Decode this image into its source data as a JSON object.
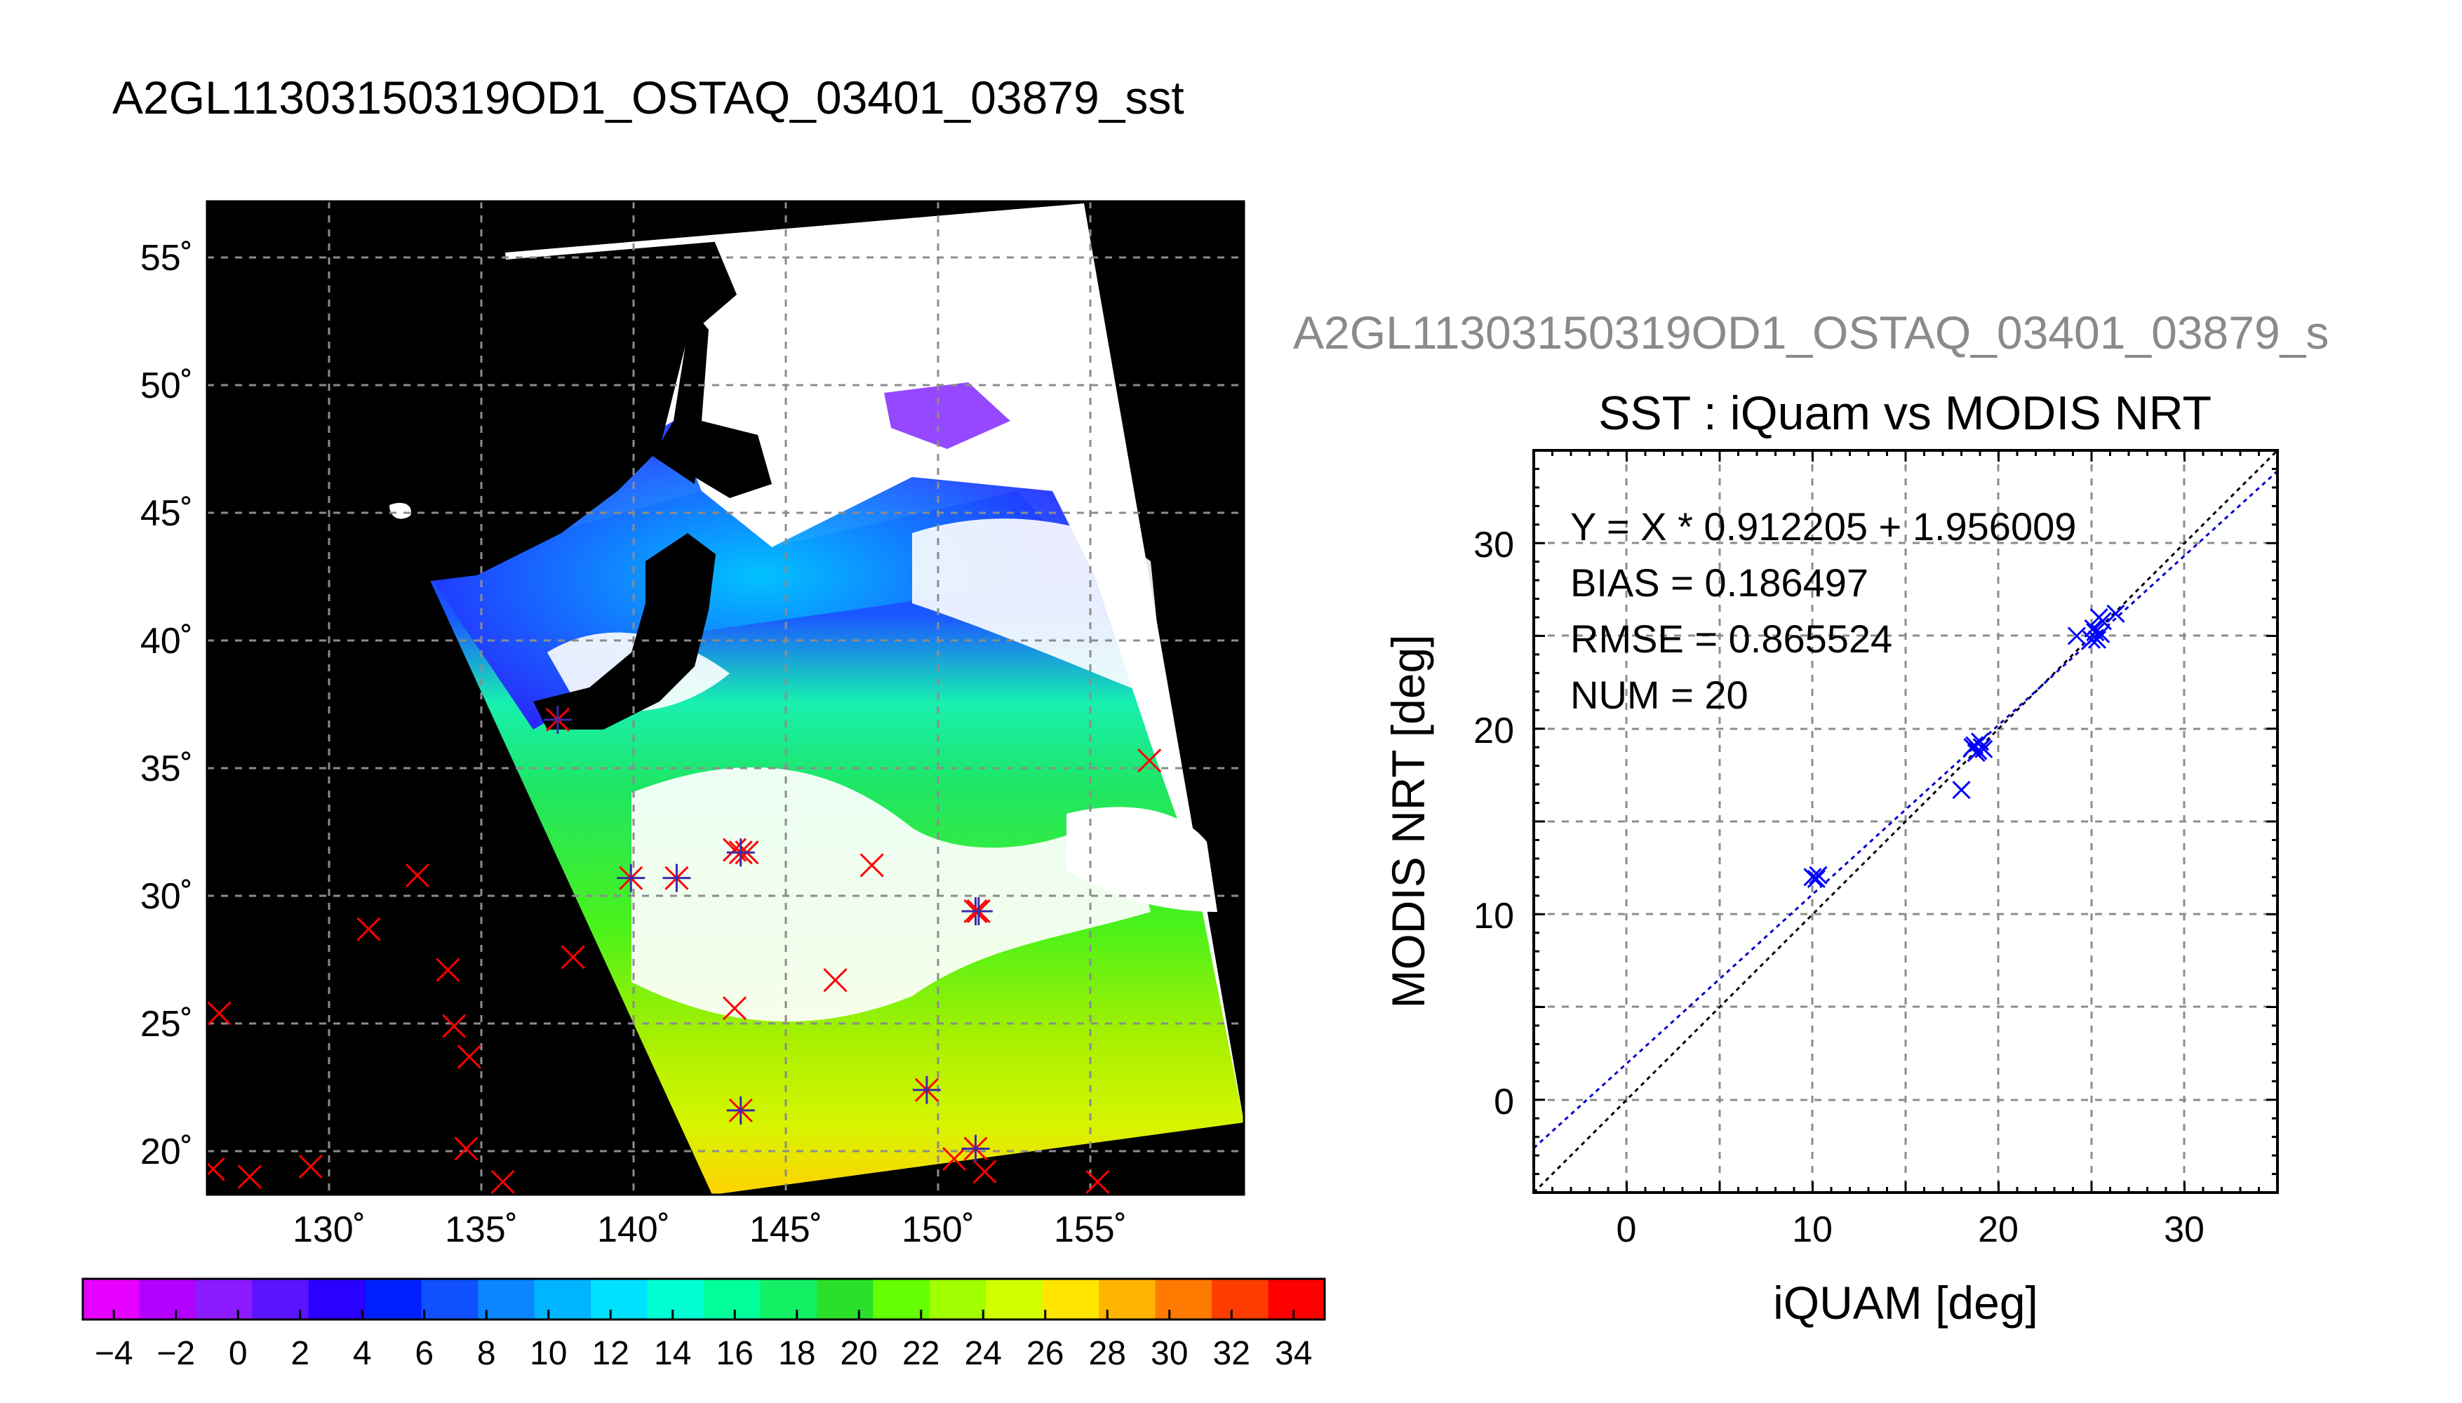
{
  "map_title": "A2GL11303150319OD1_OSTAQ_03401_03879_sst",
  "map": {
    "lat_ticks": [
      "55˚",
      "50˚",
      "45˚",
      "40˚",
      "35˚",
      "30˚",
      "25˚",
      "20˚"
    ],
    "lon_ticks": [
      "130˚",
      "135˚",
      "140˚",
      "145˚",
      "150˚",
      "155˚"
    ],
    "colorbar_ticks": [
      "−4",
      "−2",
      "0",
      "2",
      "4",
      "6",
      "8",
      "10",
      "12",
      "14",
      "16",
      "18",
      "20",
      "22",
      "24",
      "26",
      "28",
      "30",
      "32",
      "34"
    ],
    "colorbar_colors": [
      "#e600ff",
      "#b300ff",
      "#8c1aff",
      "#5a14ff",
      "#2a00ff",
      "#0020ff",
      "#1050ff",
      "#0a86ff",
      "#00b4ff",
      "#00e0ff",
      "#00ffd2",
      "#00ff99",
      "#14f064",
      "#2ae02a",
      "#64ff00",
      "#a0ff00",
      "#d2ff00",
      "#ffe600",
      "#ffb400",
      "#ff7a00",
      "#ff3c00",
      "#ff0000"
    ],
    "insitu_points": [
      [
        126.4,
        25.6
      ],
      [
        126.2,
        19.5
      ],
      [
        127.4,
        19.2
      ],
      [
        129.4,
        19.6
      ],
      [
        131.3,
        28.9
      ],
      [
        132.9,
        31.0
      ],
      [
        133.9,
        27.3
      ],
      [
        134.1,
        25.1
      ],
      [
        134.6,
        23.9
      ],
      [
        134.5,
        20.3
      ],
      [
        135.7,
        19.0
      ],
      [
        138.0,
        27.8
      ],
      [
        143.3,
        25.8
      ],
      [
        146.6,
        26.9
      ],
      [
        147.8,
        31.4
      ],
      [
        155.2,
        19.0
      ],
      [
        156.9,
        35.5
      ],
      [
        150.5,
        19.9
      ],
      [
        151.5,
        19.4
      ],
      [
        143.3,
        32.0
      ],
      [
        143.7,
        31.9
      ]
    ],
    "matchup_points": [
      [
        137.5,
        37.1
      ],
      [
        139.9,
        30.9
      ],
      [
        141.4,
        30.9
      ],
      [
        143.5,
        21.8
      ],
      [
        149.6,
        22.6
      ],
      [
        151.2,
        29.6
      ],
      [
        151.3,
        29.6
      ],
      [
        151.2,
        20.3
      ],
      [
        143.5,
        31.9
      ]
    ]
  },
  "scatter_title_top": "A2GL11303150319OD1_OSTAQ_03401_03879_s",
  "chart_data": {
    "type": "scatter",
    "title": "SST : iQuam vs MODIS NRT",
    "xlabel": "iQUAM [deg]",
    "ylabel": "MODIS NRT [deg]",
    "xlim": [
      -5,
      35
    ],
    "ylim": [
      -5,
      35
    ],
    "x_ticks": [
      "0",
      "10",
      "20",
      "30"
    ],
    "y_ticks": [
      "0",
      "10",
      "20",
      "30"
    ],
    "grid": true,
    "stats": [
      "Y = X * 0.912205 + 1.956009",
      "BIAS = 0.186497",
      "RMSE = 0.865524",
      "NUM = 20"
    ],
    "x": [
      10.0,
      10.2,
      18.0,
      18.6,
      18.9,
      19.0,
      18.8,
      19.1,
      18.7,
      24.2,
      25.0,
      25.2,
      25.3,
      25.4,
      25.6,
      26.3,
      25.1,
      19.2,
      10.3,
      25.5
    ],
    "y": [
      12.0,
      11.9,
      16.7,
      19.0,
      18.8,
      19.3,
      18.7,
      19.0,
      19.1,
      25.0,
      24.8,
      25.2,
      24.8,
      26.0,
      25.8,
      26.2,
      25.4,
      18.9,
      12.1,
      25.1
    ],
    "fit_line": {
      "slope": 0.912205,
      "intercept": 1.956009,
      "color": "#0000cc"
    },
    "identity_line": {
      "color": "#000000"
    },
    "point_color": "#0000ff"
  }
}
